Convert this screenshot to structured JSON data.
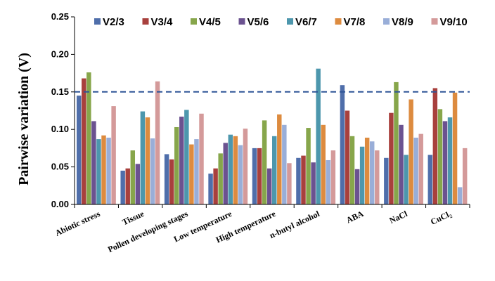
{
  "chart_data": {
    "type": "bar",
    "title": "",
    "xlabel": "",
    "ylabel": "Pairwise variation (V)",
    "ylim": [
      0,
      0.25
    ],
    "yticks": [
      "0.00",
      "0.05",
      "0.10",
      "0.15",
      "0.20",
      "0.25"
    ],
    "grid": false,
    "legend_position": "top",
    "threshold": 0.15,
    "categories": [
      "Abiotic stress",
      "Tissue",
      "Pollen developing stages",
      "Low temperature",
      "High temperature",
      "n-butyl alcohol",
      "ABA",
      "NaCl",
      "CuCl₂"
    ],
    "series": [
      {
        "name": "V2/3",
        "color": "#4f6eaa",
        "values": [
          0.145,
          0.045,
          0.067,
          0.041,
          0.075,
          0.062,
          0.159,
          0.062,
          0.066
        ]
      },
      {
        "name": "V3/4",
        "color": "#a8403d",
        "values": [
          0.168,
          0.048,
          0.06,
          0.048,
          0.075,
          0.065,
          0.125,
          0.122,
          0.155
        ]
      },
      {
        "name": "V4/5",
        "color": "#87a64b",
        "values": [
          0.176,
          0.072,
          0.103,
          0.068,
          0.112,
          0.102,
          0.091,
          0.163,
          0.127
        ]
      },
      {
        "name": "V5/6",
        "color": "#6b5290",
        "values": [
          0.111,
          0.054,
          0.117,
          0.082,
          0.048,
          0.056,
          0.047,
          0.106,
          0.111
        ]
      },
      {
        "name": "V6/7",
        "color": "#4d97ad",
        "values": [
          0.087,
          0.124,
          0.126,
          0.093,
          0.091,
          0.181,
          0.077,
          0.066,
          0.116
        ]
      },
      {
        "name": "V7/8",
        "color": "#dd8b3f",
        "values": [
          0.092,
          0.116,
          0.08,
          0.091,
          0.12,
          0.106,
          0.089,
          0.14,
          0.149
        ]
      },
      {
        "name": "V8/9",
        "color": "#99aed8",
        "values": [
          0.089,
          0.088,
          0.087,
          0.079,
          0.106,
          0.059,
          0.084,
          0.089,
          0.023
        ]
      },
      {
        "name": "V9/10",
        "color": "#d49a9a",
        "values": [
          0.131,
          0.164,
          0.121,
          0.101,
          0.055,
          0.072,
          0.072,
          0.094,
          0.075
        ]
      }
    ],
    "threshold_color": "#2f5597"
  }
}
